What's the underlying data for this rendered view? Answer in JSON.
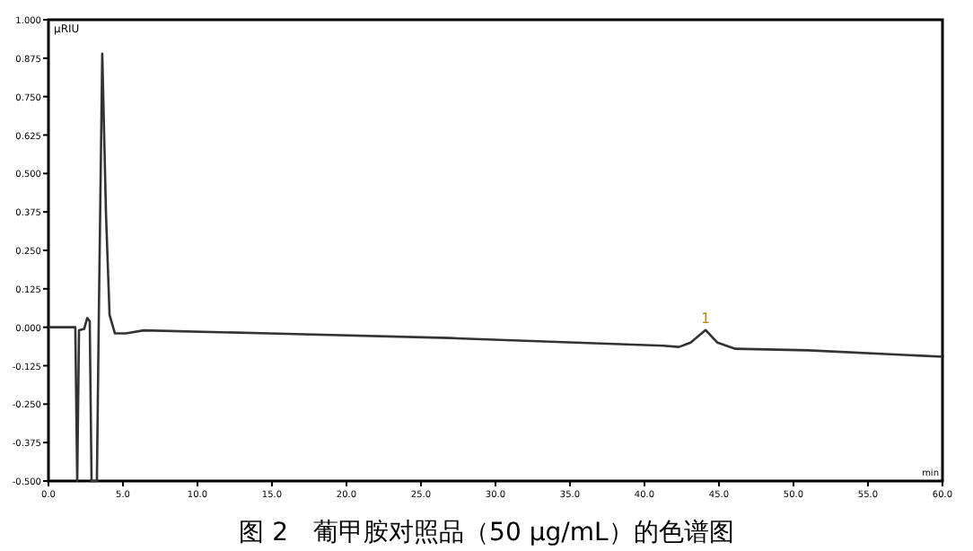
{
  "chart_data": {
    "type": "line",
    "title": "图 2　葡甲胺对照品（50 μg/mL）的色谱图",
    "ylabel": "µRIU",
    "xlabel": "min",
    "x": [
      0,
      1.8,
      1.93,
      2.05,
      2.4,
      2.6,
      2.77,
      2.89,
      3.25,
      3.37,
      3.61,
      3.86,
      4.1,
      4.46,
      5.2,
      6.4,
      14.8,
      26.9,
      41.3,
      42.3,
      43.1,
      44.1,
      44.9,
      46.1,
      51,
      60
    ],
    "series": [
      {
        "color": "#333333",
        "values": [
          0,
          0,
          -0.5,
          -0.01,
          -0.005,
          0.03,
          0.02,
          -0.5,
          -0.5,
          0,
          0.89,
          0.37,
          0.04,
          -0.02,
          -0.02,
          -0.01,
          -0.02,
          -0.035,
          -0.06,
          -0.064,
          -0.05,
          -0.009,
          -0.05,
          -0.07,
          -0.075,
          -0.096
        ]
      }
    ],
    "annotations": [
      {
        "text": "1",
        "x": 44.1,
        "y": -0.009
      }
    ],
    "xlim": [
      0,
      60
    ],
    "ylim": [
      -0.5,
      1
    ],
    "xticks": [
      {
        "value": 0,
        "label": "0.0"
      },
      {
        "value": 5,
        "label": "5.0"
      },
      {
        "value": 10,
        "label": "10.0"
      },
      {
        "value": 15,
        "label": "15.0"
      },
      {
        "value": 20,
        "label": "20.0"
      },
      {
        "value": 25,
        "label": "25.0"
      },
      {
        "value": 30,
        "label": "30.0"
      },
      {
        "value": 35,
        "label": "35.0"
      },
      {
        "value": 40,
        "label": "40.0"
      },
      {
        "value": 45,
        "label": "45.0"
      },
      {
        "value": 50,
        "label": "50.0"
      },
      {
        "value": 55,
        "label": "55.0"
      },
      {
        "value": 60,
        "label": "60.0"
      }
    ],
    "yticks": [
      {
        "value": -0.5,
        "label": "-0.500"
      },
      {
        "value": -0.375,
        "label": "-0.375"
      },
      {
        "value": -0.25,
        "label": "-0.250"
      },
      {
        "value": -0.125,
        "label": "-0.125"
      },
      {
        "value": 0,
        "label": "0.000"
      },
      {
        "value": 0.125,
        "label": "0.125"
      },
      {
        "value": 0.25,
        "label": "0.250"
      },
      {
        "value": 0.375,
        "label": "0.375"
      },
      {
        "value": 0.5,
        "label": "0.500"
      },
      {
        "value": 0.625,
        "label": "0.625"
      },
      {
        "value": 0.75,
        "label": "0.750"
      },
      {
        "value": 0.875,
        "label": "0.875"
      },
      {
        "value": 1,
        "label": "1.000"
      }
    ]
  }
}
